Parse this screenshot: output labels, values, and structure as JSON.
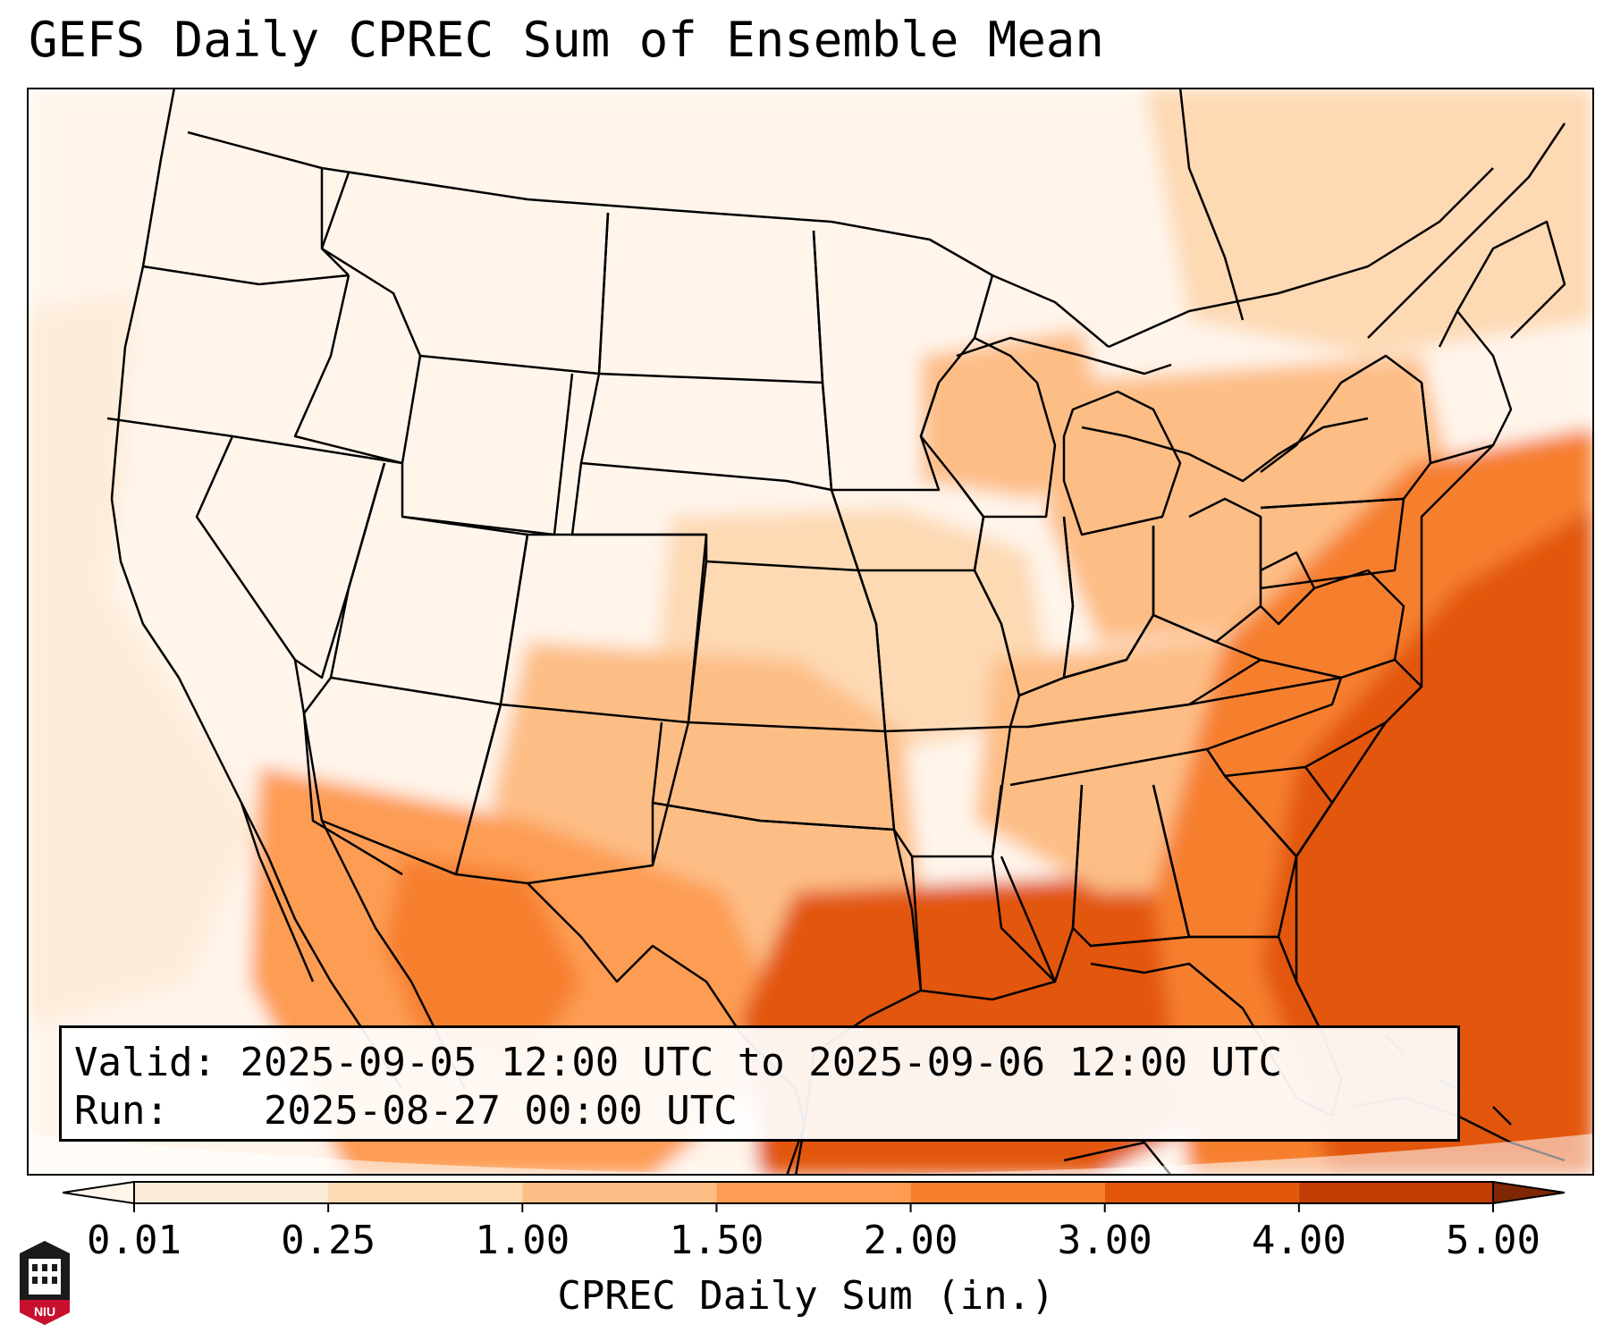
{
  "title": "GEFS Daily CPREC Sum of Ensemble Mean",
  "info": {
    "valid_label": "Valid:",
    "valid_value": "2025-09-05 12:00 UTC to 2025-09-06 12:00 UTC",
    "run_label": "Run:",
    "run_value": "2025-08-27 00:00 UTC"
  },
  "colorbar": {
    "label": "CPREC Daily Sum (in.)",
    "ticks": [
      "0.01",
      "0.25",
      "1.00",
      "1.50",
      "2.00",
      "3.00",
      "4.00",
      "5.00"
    ],
    "colors": [
      "#fdecd9",
      "#fdd9b4",
      "#fdbe86",
      "#fd9c52",
      "#f67f2e",
      "#e2570c",
      "#c03d03",
      "#8c2d04"
    ],
    "under_color": "#fff5eb",
    "over_color": "#7f2704"
  },
  "map": {
    "land_border_color": "#000000",
    "background": "#ffffff",
    "precip_regions": [
      {
        "name": "background",
        "level": 1
      },
      {
        "name": "west-coast-light",
        "level": 0
      },
      {
        "name": "plains-south",
        "level": 3
      },
      {
        "name": "texas-oklahoma",
        "level": 4
      },
      {
        "name": "mexico-sierra",
        "level": 5
      },
      {
        "name": "mexico-core",
        "level": 7
      },
      {
        "name": "gulf-coast",
        "level": 6
      },
      {
        "name": "southeast",
        "level": 4
      },
      {
        "name": "northeast",
        "level": 4
      },
      {
        "name": "great-lakes",
        "level": 4
      },
      {
        "name": "atlantic-band",
        "level": 6
      },
      {
        "name": "atlantic-core",
        "level": 7
      }
    ]
  },
  "logo": {
    "text": "NIU"
  }
}
